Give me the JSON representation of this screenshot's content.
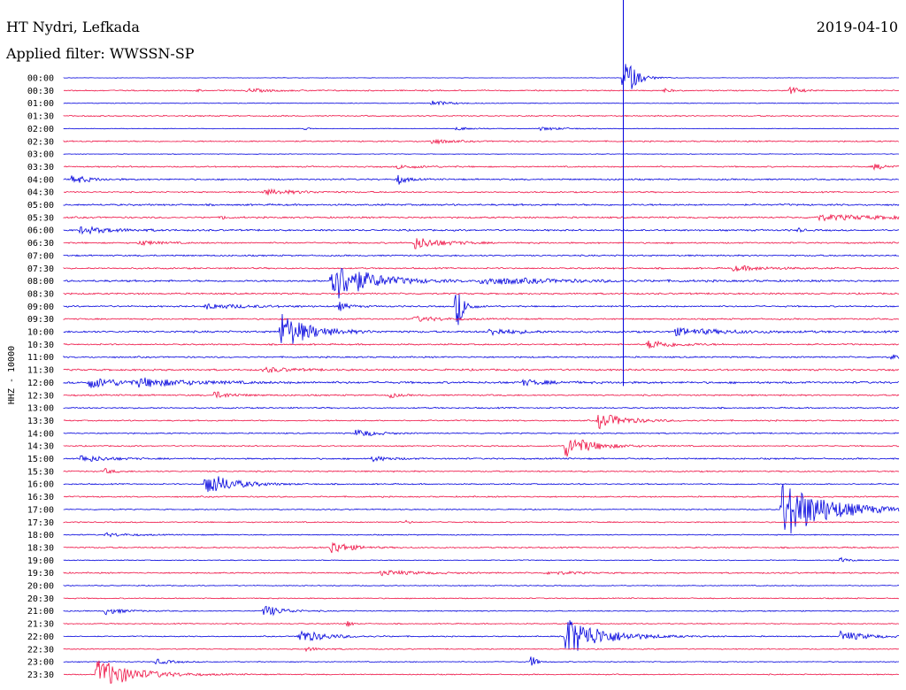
{
  "header": {
    "station": "HT Nydri, Lefkada",
    "date": "2019-04-10",
    "filter": "Applied filter: WWSSN-SP"
  },
  "chart_data": {
    "type": "line",
    "title": "HT Nydri, Lefkada",
    "subtitle": "Applied filter: WWSSN-SP",
    "date": "2019-04-10",
    "ylabel": "HHZ - 10000",
    "colors": {
      "odd_rows": "#0000dd",
      "even_rows": "#ee1144"
    },
    "rows": [
      {
        "label": "00:00",
        "color": "blue",
        "noise": 0.3,
        "events": [
          {
            "pos": 0.67,
            "amp": 30,
            "dur": 0.012
          }
        ]
      },
      {
        "label": "00:30",
        "color": "red",
        "noise": 0.8,
        "events": [
          {
            "pos": 0.16,
            "amp": 2,
            "dur": 0.003
          },
          {
            "pos": 0.22,
            "amp": 2,
            "dur": 0.03
          },
          {
            "pos": 0.72,
            "amp": 3,
            "dur": 0.006
          },
          {
            "pos": 0.87,
            "amp": 5,
            "dur": 0.01
          }
        ]
      },
      {
        "label": "01:00",
        "color": "blue",
        "noise": 0.5,
        "events": [
          {
            "pos": 0.44,
            "amp": 3,
            "dur": 0.02
          }
        ]
      },
      {
        "label": "01:30",
        "color": "red",
        "noise": 0.8,
        "events": []
      },
      {
        "label": "02:00",
        "color": "blue",
        "noise": 0.4,
        "events": [
          {
            "pos": 0.29,
            "amp": 3,
            "dur": 0.003
          },
          {
            "pos": 0.47,
            "amp": 2,
            "dur": 0.02
          },
          {
            "pos": 0.57,
            "amp": 2,
            "dur": 0.03
          }
        ]
      },
      {
        "label": "02:30",
        "color": "red",
        "noise": 0.9,
        "events": [
          {
            "pos": 0.44,
            "amp": 3,
            "dur": 0.02
          }
        ]
      },
      {
        "label": "03:00",
        "color": "blue",
        "noise": 0.4,
        "events": []
      },
      {
        "label": "03:30",
        "color": "red",
        "noise": 0.9,
        "events": [
          {
            "pos": 0.4,
            "amp": 2,
            "dur": 0.03
          },
          {
            "pos": 0.97,
            "amp": 3,
            "dur": 0.02
          }
        ]
      },
      {
        "label": "04:00",
        "color": "blue",
        "noise": 1.0,
        "events": [
          {
            "pos": 0.01,
            "amp": 5,
            "dur": 0.02
          },
          {
            "pos": 0.4,
            "amp": 6,
            "dur": 0.01
          }
        ]
      },
      {
        "label": "04:30",
        "color": "red",
        "noise": 0.9,
        "events": [
          {
            "pos": 0.24,
            "amp": 3,
            "dur": 0.04
          }
        ]
      },
      {
        "label": "05:00",
        "color": "blue",
        "noise": 1.2,
        "events": []
      },
      {
        "label": "05:30",
        "color": "red",
        "noise": 1.1,
        "events": [
          {
            "pos": 0.19,
            "amp": 3,
            "dur": 0.005
          },
          {
            "pos": 0.9,
            "amp": 3,
            "dur": 0.1
          }
        ]
      },
      {
        "label": "06:00",
        "color": "blue",
        "noise": 1.1,
        "events": [
          {
            "pos": 0.02,
            "amp": 4,
            "dur": 0.04
          },
          {
            "pos": 0.88,
            "amp": 3,
            "dur": 0.005
          }
        ]
      },
      {
        "label": "06:30",
        "color": "red",
        "noise": 1.0,
        "events": [
          {
            "pos": 0.09,
            "amp": 3,
            "dur": 0.02
          },
          {
            "pos": 0.42,
            "amp": 7,
            "dur": 0.03
          }
        ]
      },
      {
        "label": "07:00",
        "color": "blue",
        "noise": 1.0,
        "events": []
      },
      {
        "label": "07:30",
        "color": "red",
        "noise": 1.0,
        "events": [
          {
            "pos": 0.8,
            "amp": 3,
            "dur": 0.04
          }
        ]
      },
      {
        "label": "08:00",
        "color": "blue",
        "noise": 1.3,
        "events": [
          {
            "pos": 0.32,
            "amp": 25,
            "dur": 0.04
          },
          {
            "pos": 0.5,
            "amp": 4,
            "dur": 0.08
          }
        ]
      },
      {
        "label": "08:30",
        "color": "red",
        "noise": 1.1,
        "events": []
      },
      {
        "label": "09:00",
        "color": "blue",
        "noise": 1.0,
        "events": [
          {
            "pos": 0.17,
            "amp": 3,
            "dur": 0.05
          },
          {
            "pos": 0.33,
            "amp": 5,
            "dur": 0.01
          },
          {
            "pos": 0.47,
            "amp": 28,
            "dur": 0.008
          }
        ]
      },
      {
        "label": "09:30",
        "color": "red",
        "noise": 1.0,
        "events": [
          {
            "pos": 0.42,
            "amp": 3,
            "dur": 0.03
          }
        ]
      },
      {
        "label": "10:00",
        "color": "blue",
        "noise": 1.3,
        "events": [
          {
            "pos": 0.26,
            "amp": 22,
            "dur": 0.03
          },
          {
            "pos": 0.51,
            "amp": 4,
            "dur": 0.03
          },
          {
            "pos": 0.73,
            "amp": 4,
            "dur": 0.06
          }
        ]
      },
      {
        "label": "10:30",
        "color": "red",
        "noise": 1.0,
        "events": [
          {
            "pos": 0.7,
            "amp": 5,
            "dur": 0.03
          }
        ]
      },
      {
        "label": "11:00",
        "color": "blue",
        "noise": 1.0,
        "events": [
          {
            "pos": 0.99,
            "amp": 3,
            "dur": 0.01
          }
        ]
      },
      {
        "label": "11:30",
        "color": "red",
        "noise": 1.2,
        "events": [
          {
            "pos": 0.24,
            "amp": 3,
            "dur": 0.03
          }
        ]
      },
      {
        "label": "12:00",
        "color": "blue",
        "noise": 1.4,
        "events": [
          {
            "pos": 0.03,
            "amp": 6,
            "dur": 0.04
          },
          {
            "pos": 0.09,
            "amp": 4,
            "dur": 0.06
          },
          {
            "pos": 0.55,
            "amp": 3,
            "dur": 0.03
          }
        ]
      },
      {
        "label": "12:30",
        "color": "red",
        "noise": 1.0,
        "events": [
          {
            "pos": 0.18,
            "amp": 4,
            "dur": 0.02
          },
          {
            "pos": 0.39,
            "amp": 3,
            "dur": 0.01
          }
        ]
      },
      {
        "label": "13:00",
        "color": "blue",
        "noise": 0.9,
        "events": []
      },
      {
        "label": "13:30",
        "color": "red",
        "noise": 0.9,
        "events": [
          {
            "pos": 0.64,
            "amp": 9,
            "dur": 0.03
          }
        ]
      },
      {
        "label": "14:00",
        "color": "blue",
        "noise": 0.8,
        "events": [
          {
            "pos": 0.35,
            "amp": 5,
            "dur": 0.02
          }
        ]
      },
      {
        "label": "14:30",
        "color": "red",
        "noise": 0.8,
        "events": [
          {
            "pos": 0.6,
            "amp": 13,
            "dur": 0.03
          }
        ]
      },
      {
        "label": "15:00",
        "color": "blue",
        "noise": 1.0,
        "events": [
          {
            "pos": 0.02,
            "amp": 4,
            "dur": 0.03
          },
          {
            "pos": 0.37,
            "amp": 3,
            "dur": 0.02
          }
        ]
      },
      {
        "label": "15:30",
        "color": "red",
        "noise": 0.9,
        "events": [
          {
            "pos": 0.05,
            "amp": 3,
            "dur": 0.01
          }
        ]
      },
      {
        "label": "16:00",
        "color": "blue",
        "noise": 0.8,
        "events": [
          {
            "pos": 0.17,
            "amp": 14,
            "dur": 0.03
          }
        ]
      },
      {
        "label": "16:30",
        "color": "red",
        "noise": 0.9,
        "events": []
      },
      {
        "label": "17:00",
        "color": "blue",
        "noise": 0.7,
        "events": [
          {
            "pos": 0.86,
            "amp": 34,
            "dur": 0.05
          }
        ]
      },
      {
        "label": "17:30",
        "color": "red",
        "noise": 0.8,
        "events": [
          {
            "pos": 0.41,
            "amp": 2,
            "dur": 0.004
          }
        ]
      },
      {
        "label": "18:00",
        "color": "blue",
        "noise": 0.7,
        "events": [
          {
            "pos": 0.05,
            "amp": 2,
            "dur": 0.03
          }
        ]
      },
      {
        "label": "18:30",
        "color": "red",
        "noise": 0.9,
        "events": [
          {
            "pos": 0.32,
            "amp": 8,
            "dur": 0.02
          }
        ]
      },
      {
        "label": "19:00",
        "color": "blue",
        "noise": 0.6,
        "events": [
          {
            "pos": 0.93,
            "amp": 3,
            "dur": 0.01
          }
        ]
      },
      {
        "label": "19:30",
        "color": "red",
        "noise": 0.9,
        "events": [
          {
            "pos": 0.38,
            "amp": 3,
            "dur": 0.04
          },
          {
            "pos": 0.58,
            "amp": 2,
            "dur": 0.03
          }
        ]
      },
      {
        "label": "20:00",
        "color": "blue",
        "noise": 0.6,
        "events": []
      },
      {
        "label": "20:30",
        "color": "red",
        "noise": 0.7,
        "events": []
      },
      {
        "label": "21:00",
        "color": "blue",
        "noise": 0.7,
        "events": [
          {
            "pos": 0.05,
            "amp": 4,
            "dur": 0.02
          },
          {
            "pos": 0.24,
            "amp": 7,
            "dur": 0.02
          }
        ]
      },
      {
        "label": "21:30",
        "color": "red",
        "noise": 0.7,
        "events": [
          {
            "pos": 0.34,
            "amp": 5,
            "dur": 0.004
          }
        ]
      },
      {
        "label": "22:00",
        "color": "blue",
        "noise": 0.7,
        "events": [
          {
            "pos": 0.28,
            "amp": 8,
            "dur": 0.03
          },
          {
            "pos": 0.6,
            "amp": 24,
            "dur": 0.04
          },
          {
            "pos": 0.93,
            "amp": 6,
            "dur": 0.03
          }
        ]
      },
      {
        "label": "22:30",
        "color": "red",
        "noise": 0.7,
        "events": [
          {
            "pos": 0.29,
            "amp": 2,
            "dur": 0.02
          }
        ]
      },
      {
        "label": "23:00",
        "color": "blue",
        "noise": 0.6,
        "events": [
          {
            "pos": 0.11,
            "amp": 3,
            "dur": 0.02
          },
          {
            "pos": 0.56,
            "amp": 9,
            "dur": 0.005
          }
        ]
      },
      {
        "label": "23:30",
        "color": "red",
        "noise": 0.7,
        "events": [
          {
            "pos": 0.04,
            "amp": 18,
            "dur": 0.04
          }
        ]
      }
    ],
    "special_trace": {
      "row_start": "00:00",
      "row_end": "12:00",
      "pos": 0.67,
      "note": "vertical clipped spike"
    }
  }
}
